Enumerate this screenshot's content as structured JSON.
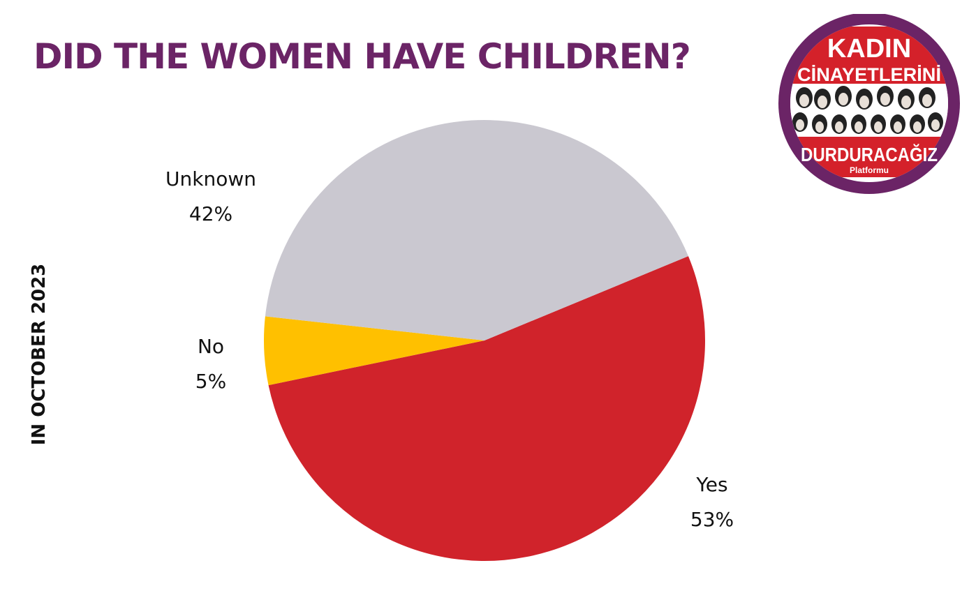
{
  "title": "DID THE WOMEN HAVE CHILDREN?",
  "side_caption": "IN OCTOBER 2023",
  "logo": {
    "line1": "KADIN",
    "line2": "CİNAYETLERİNİ",
    "line3": "DURDURACAĞIZ",
    "line4": "Platformu"
  },
  "colors": {
    "title": "#6b2466",
    "logo_ring": "#6b2466",
    "logo_band": "#d4212a"
  },
  "chart_data": {
    "type": "pie",
    "title": "DID THE WOMEN HAVE CHILDREN?",
    "slices": [
      {
        "label": "Yes",
        "value": 53,
        "display": "53%",
        "color": "#d0232b"
      },
      {
        "label": "No",
        "value": 5,
        "display": "5%",
        "color": "#ffc000"
      },
      {
        "label": "Unknown",
        "value": 42,
        "display": "42%",
        "color": "#cac8d0"
      }
    ]
  }
}
